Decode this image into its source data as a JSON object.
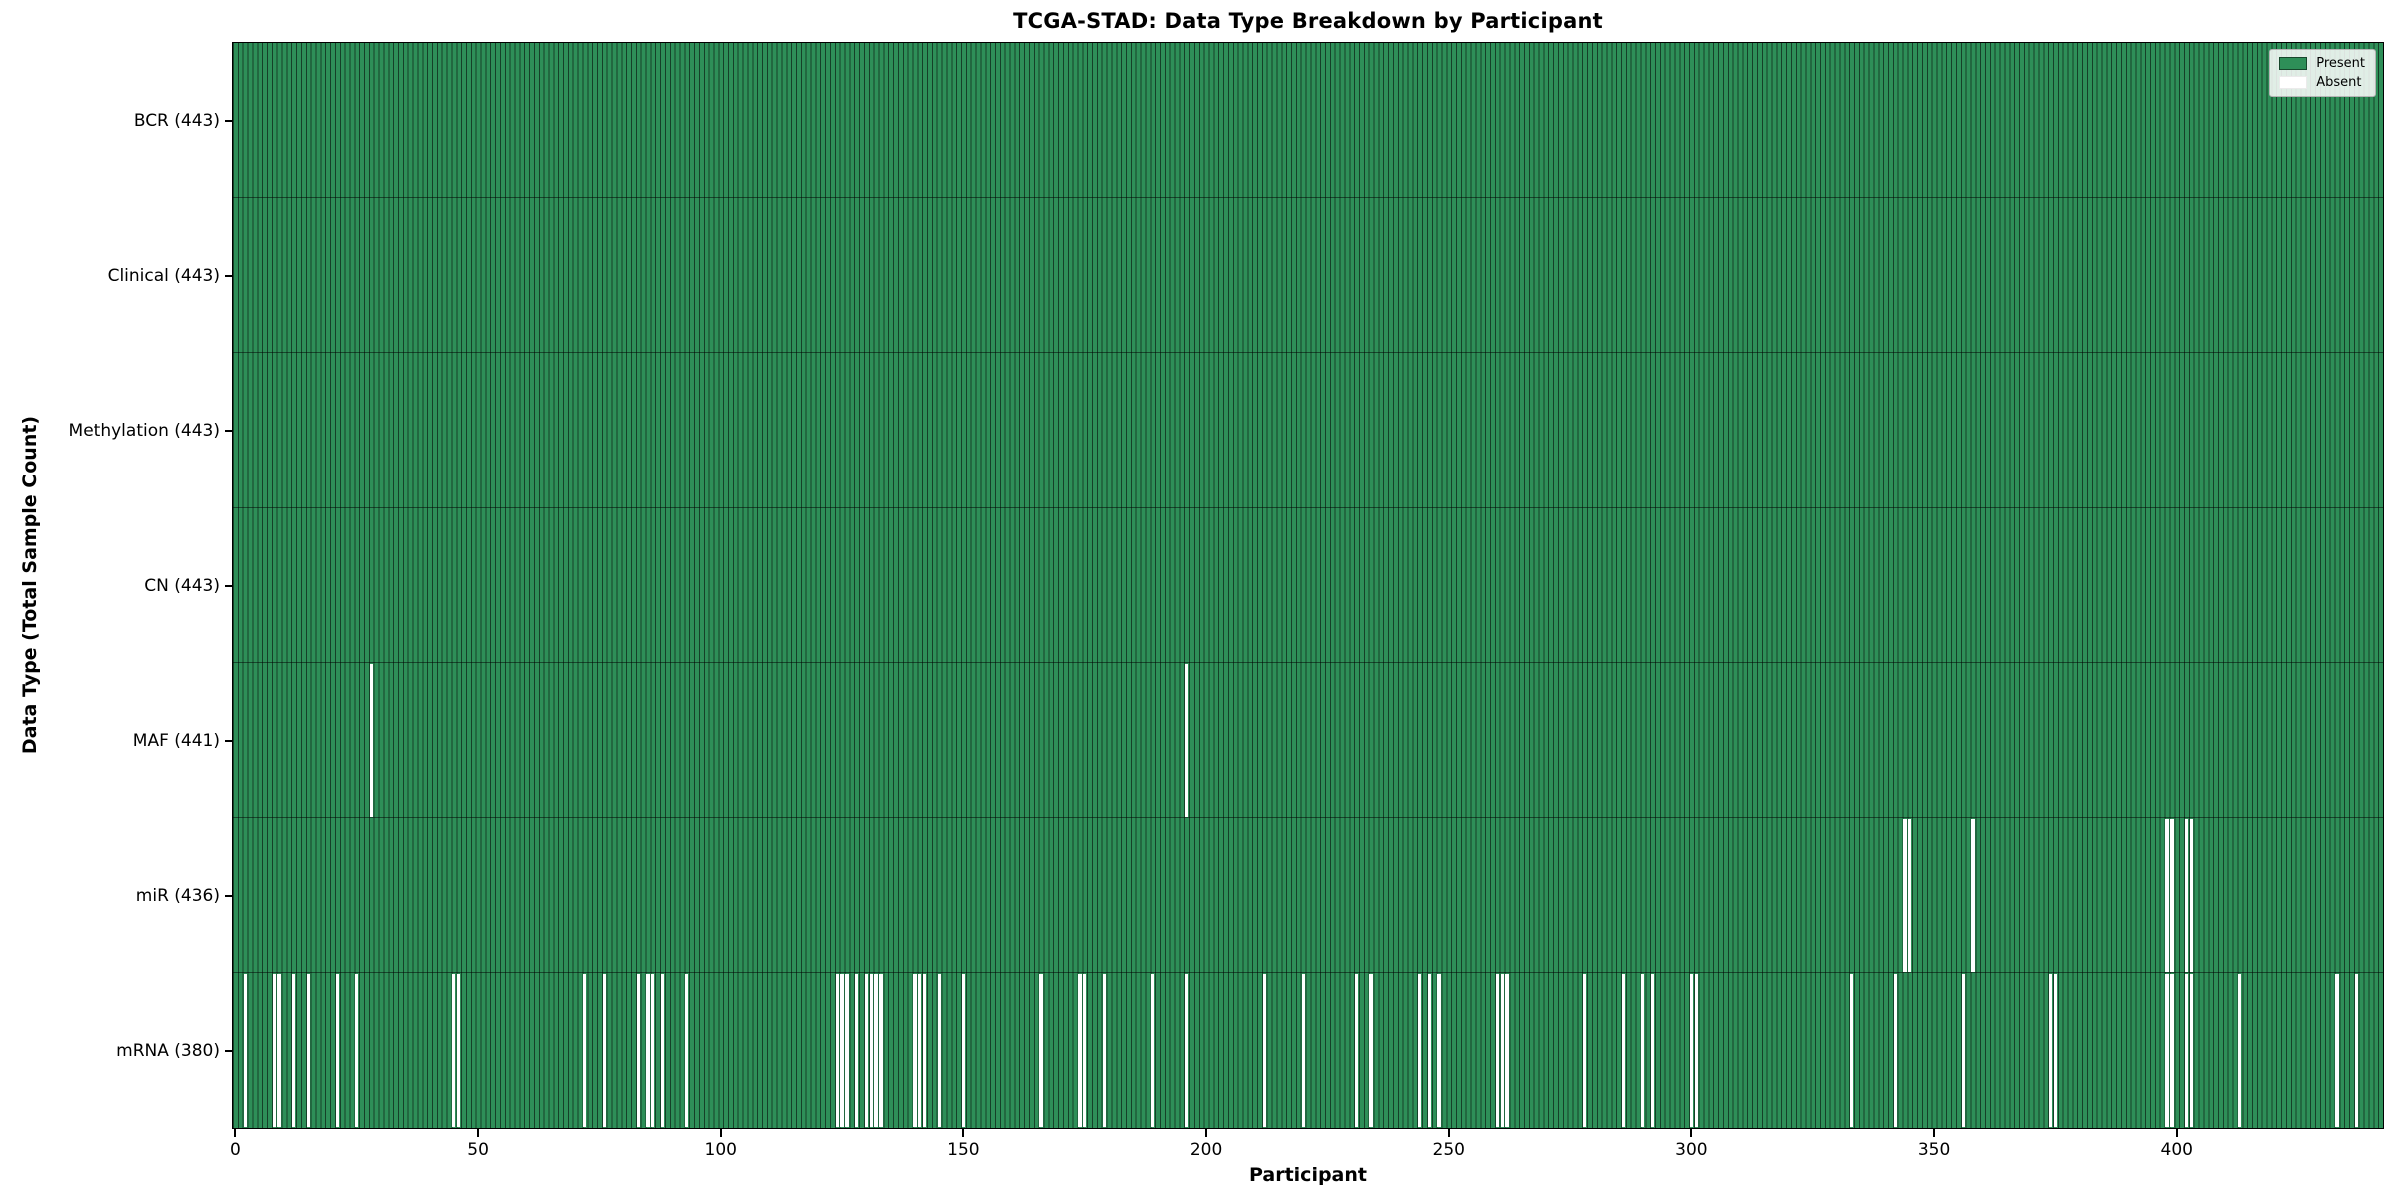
{
  "title": "TCGA-STAD: Data Type Breakdown by Participant",
  "xlabel": "Participant",
  "ylabel": "Data Type (Total Sample Count)",
  "legend": {
    "present_label": "Present",
    "absent_label": "Absent"
  },
  "colors": {
    "present": "#2e8f58",
    "absent": "#ffffff",
    "bar_edge": "rgba(0,0,0,0.55)",
    "row_divider": "rgba(0,0,0,0.5)",
    "spine": "#000000"
  },
  "chart_data": {
    "type": "heatmap",
    "title": "TCGA-STAD: Data Type Breakdown by Participant",
    "xlabel": "Participant",
    "ylabel": "Data Type (Total Sample Count)",
    "legend_entries": [
      "Present",
      "Absent"
    ],
    "legend_position": "upper right",
    "n_participants": 443,
    "x_range": [
      0,
      443
    ],
    "x_ticks": [
      0,
      50,
      100,
      150,
      200,
      250,
      300,
      350,
      400
    ],
    "rows": [
      {
        "name": "BCR",
        "label": "BCR (443)",
        "total": 443,
        "absent_participants": []
      },
      {
        "name": "Clinical",
        "label": "Clinical (443)",
        "total": 443,
        "absent_participants": []
      },
      {
        "name": "Methylation",
        "label": "Methylation (443)",
        "total": 443,
        "absent_participants": []
      },
      {
        "name": "CN",
        "label": "CN (443)",
        "total": 443,
        "absent_participants": []
      },
      {
        "name": "MAF",
        "label": "MAF (441)",
        "total": 441,
        "absent_participants": [
          28,
          196
        ]
      },
      {
        "name": "miR",
        "label": "miR (436)",
        "total": 436,
        "absent_participants": [
          344,
          345,
          358,
          398,
          399,
          402,
          403
        ]
      },
      {
        "name": "mRNA",
        "label": "mRNA (380)",
        "total": 380,
        "absent_participants": [
          2,
          8,
          9,
          12,
          15,
          21,
          25,
          45,
          46,
          72,
          76,
          83,
          85,
          86,
          88,
          93,
          124,
          125,
          126,
          128,
          130,
          131,
          132,
          133,
          140,
          141,
          142,
          145,
          150,
          166,
          174,
          175,
          179,
          189,
          196,
          212,
          220,
          231,
          234,
          244,
          246,
          248,
          260,
          261,
          262,
          278,
          286,
          290,
          292,
          300,
          301,
          333,
          342,
          356,
          374,
          375,
          398,
          399,
          402,
          403,
          413,
          433,
          437
        ]
      }
    ]
  }
}
